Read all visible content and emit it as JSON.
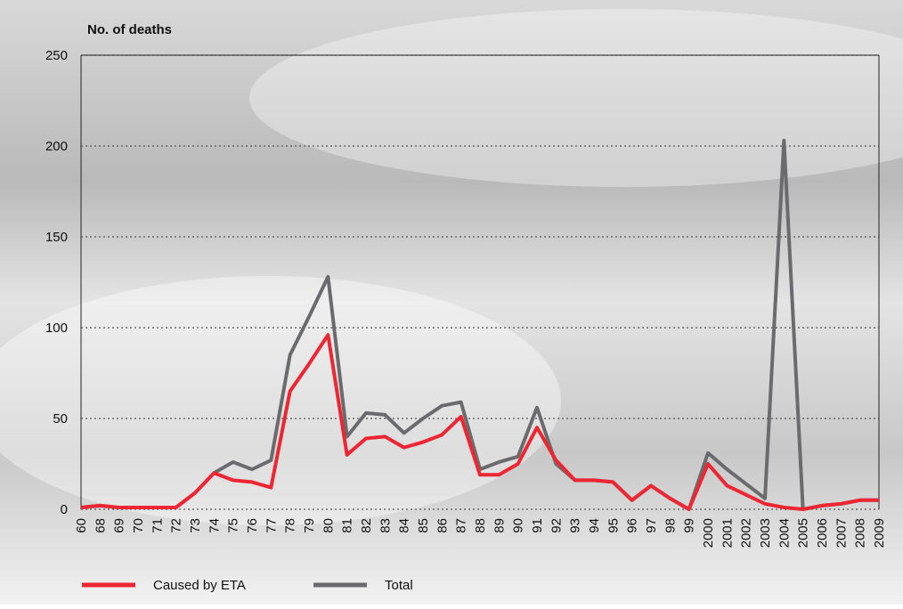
{
  "chart_data": {
    "type": "line",
    "ylabel": "No. of deaths",
    "categories": [
      "60",
      "68",
      "69",
      "70",
      "71",
      "72",
      "73",
      "74",
      "75",
      "76",
      "77",
      "78",
      "79",
      "80",
      "81",
      "82",
      "83",
      "84",
      "85",
      "86",
      "87",
      "88",
      "89",
      "90",
      "91",
      "92",
      "93",
      "94",
      "95",
      "96",
      "97",
      "98",
      "99",
      "2000",
      "2001",
      "2002",
      "2003",
      "2004",
      "2005",
      "2006",
      "2007",
      "2008",
      "2009"
    ],
    "series": [
      {
        "name": "Total",
        "color": "#6b6b6d",
        "values": [
          1,
          2,
          1,
          1,
          1,
          1,
          9,
          20,
          26,
          22,
          27,
          85,
          106,
          128,
          40,
          53,
          52,
          42,
          50,
          57,
          59,
          22,
          26,
          29,
          56,
          25,
          16,
          16,
          15,
          5,
          13,
          6,
          0,
          31,
          22,
          14,
          6,
          203,
          0,
          2,
          3,
          5,
          5
        ]
      },
      {
        "name": "Caused by ETA",
        "color": "#ee2633",
        "values": [
          1,
          2,
          1,
          1,
          1,
          1,
          9,
          20,
          16,
          15,
          12,
          65,
          80,
          96,
          30,
          39,
          40,
          34,
          37,
          41,
          51,
          19,
          19,
          25,
          45,
          27,
          16,
          16,
          15,
          5,
          13,
          6,
          0,
          25,
          13,
          8,
          3,
          1,
          0,
          2,
          3,
          5,
          5
        ]
      }
    ],
    "ylim": [
      0,
      250
    ],
    "yticks": [
      0,
      50,
      100,
      150,
      200,
      250
    ],
    "grid": true
  }
}
